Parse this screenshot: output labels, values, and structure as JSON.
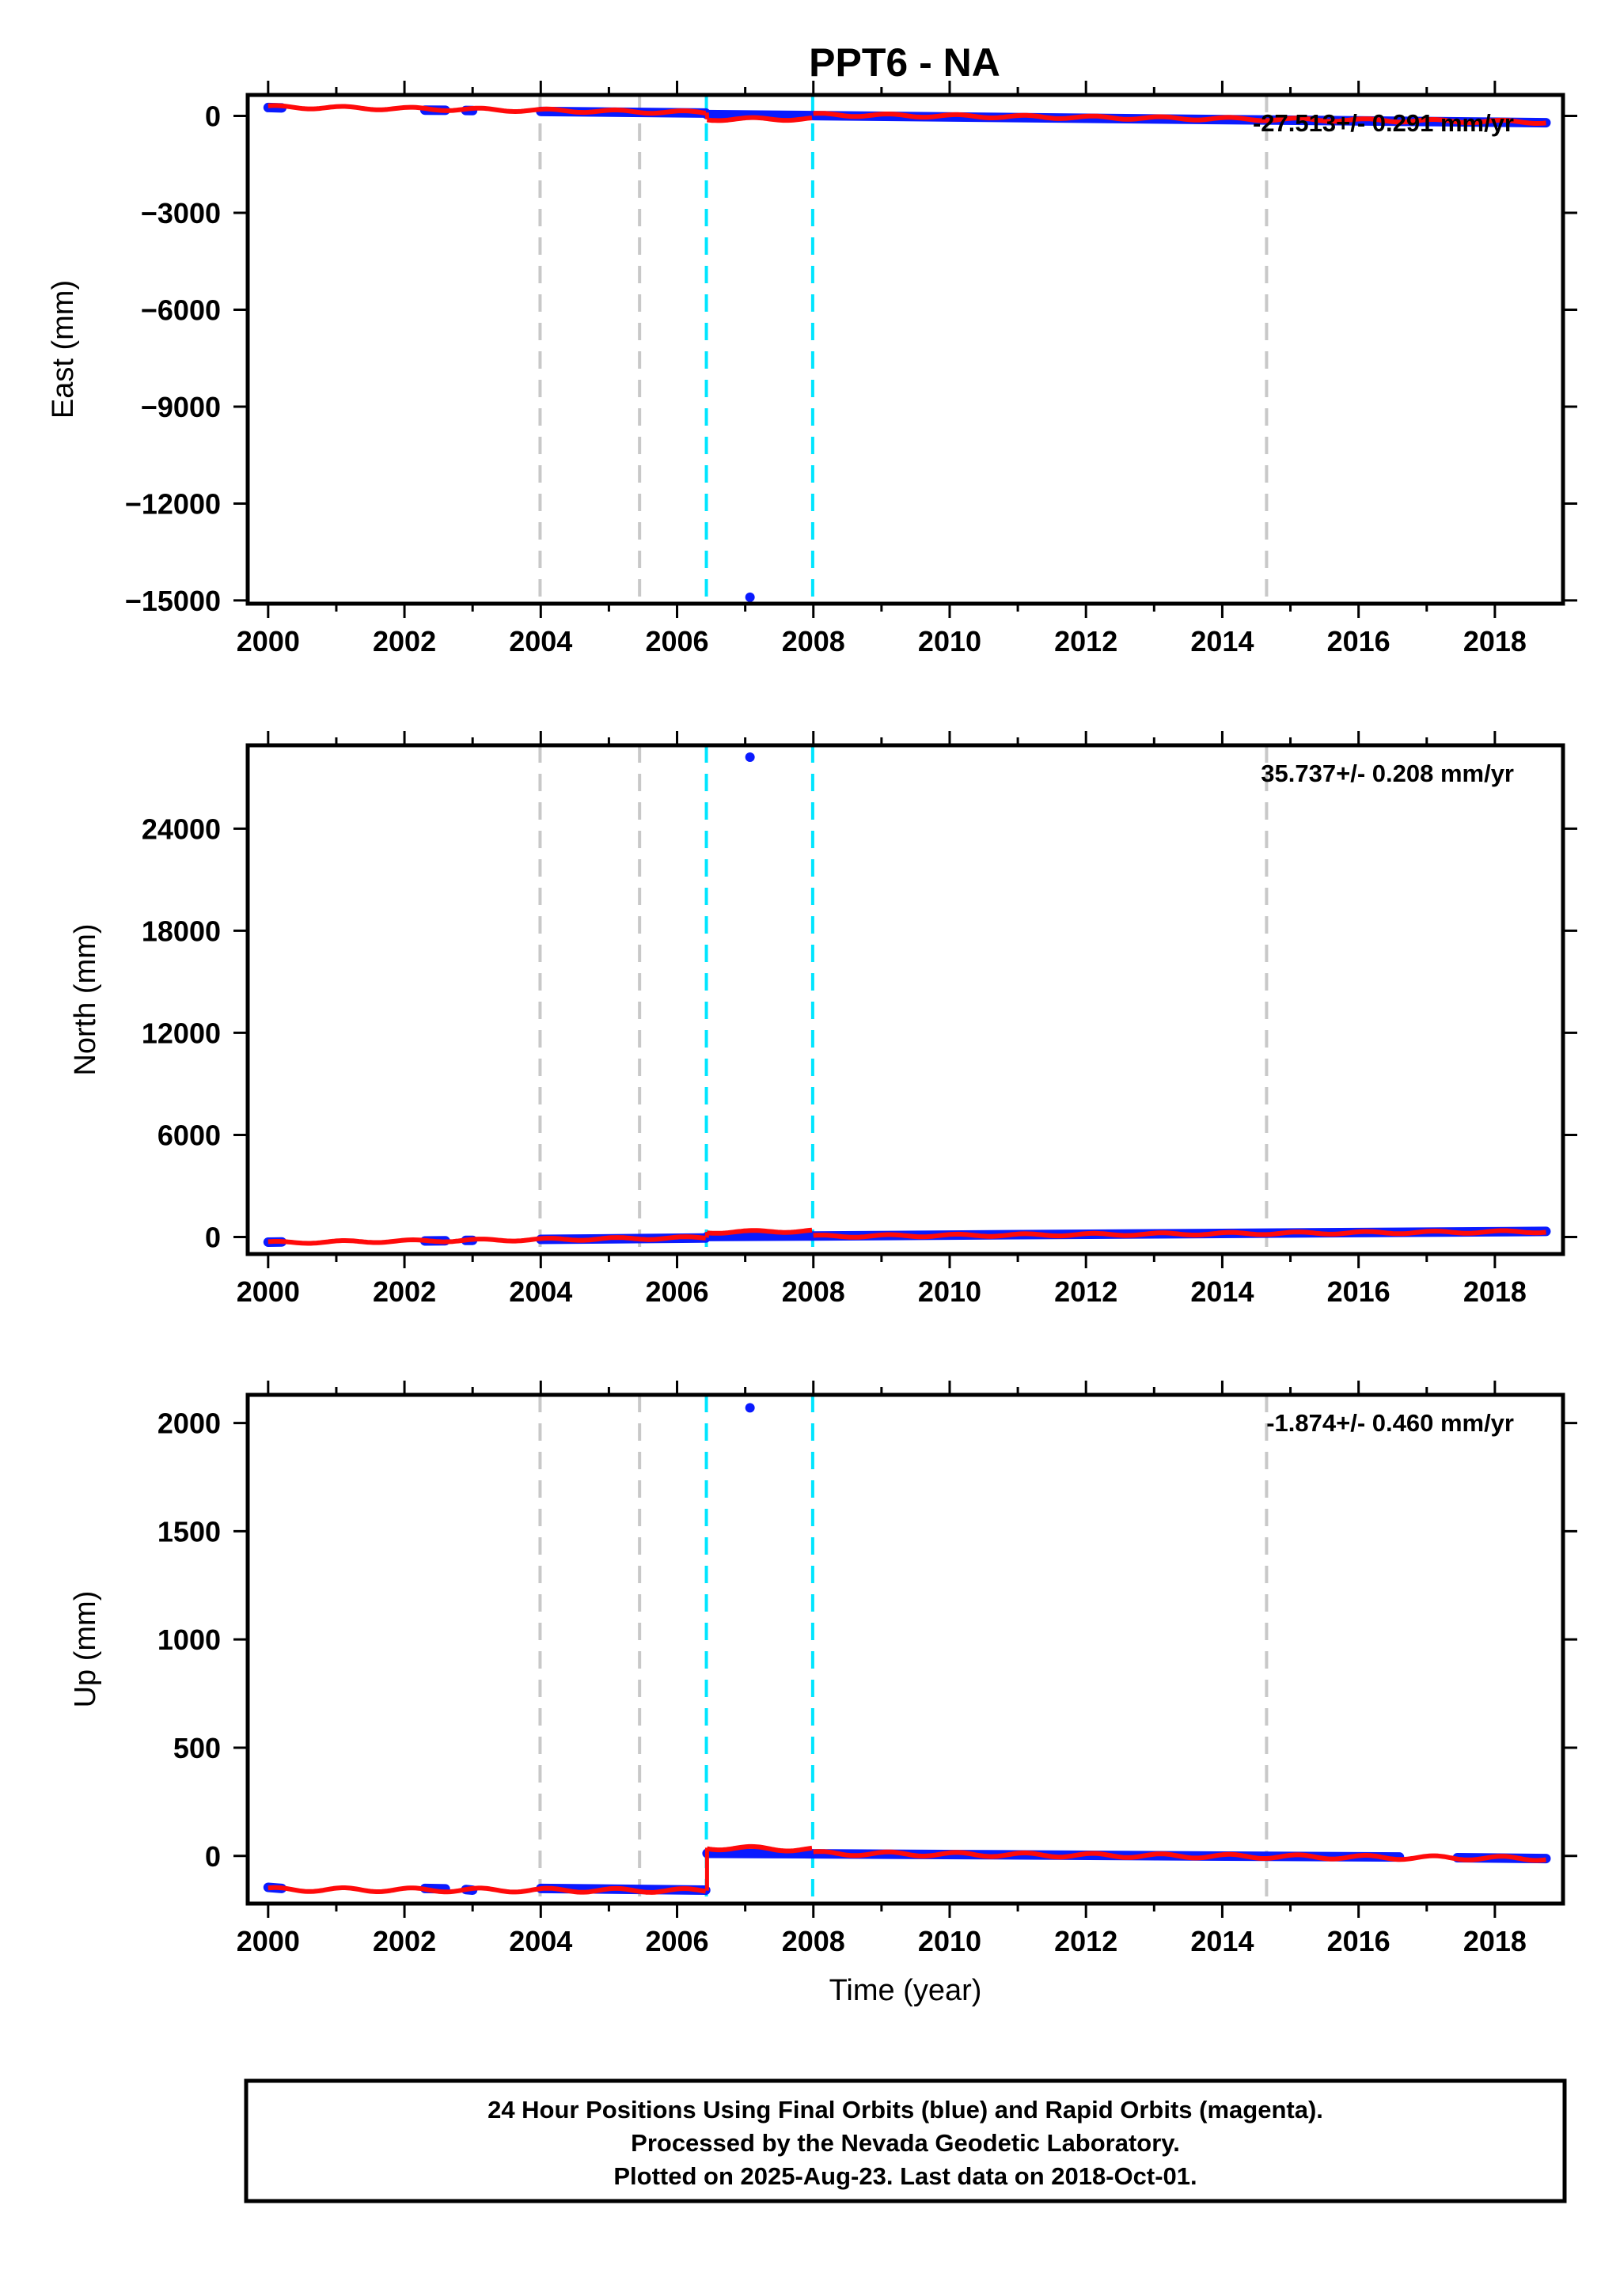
{
  "title": "PPT6 - NA",
  "caption": {
    "line1": "24 Hour Positions Using Final Orbits (blue) and Rapid Orbits (magenta).",
    "line2": "Processed by the Nevada Geodetic Laboratory.",
    "line3": "Plotted on 2025-Aug-23. Last data on 2018-Oct-01."
  },
  "colors": {
    "data_points": "#0a1aff",
    "model": "#ff0a0a",
    "equipment_change": "#c8c8c8",
    "earthquake": "#00e5ff",
    "frame": "#000000"
  },
  "chart_data": [
    {
      "type": "scatter",
      "component": "East",
      "ylabel": "East (mm)",
      "xlabel": "",
      "xlim": [
        1999.7,
        2019.0
      ],
      "ylim": [
        -15100,
        650
      ],
      "xticks": [
        2000,
        2002,
        2004,
        2006,
        2008,
        2010,
        2012,
        2014,
        2016,
        2018
      ],
      "xtick_labels": [
        "2000",
        "2002",
        "2004",
        "2006",
        "2008",
        "2010",
        "2012",
        "2014",
        "2016",
        "2018"
      ],
      "yticks": [
        0,
        -3000,
        -6000,
        -9000,
        -12000,
        -15000
      ],
      "ytick_labels": [
        "0",
        "−3000",
        "−6000",
        "−9000",
        "−12000",
        "−15000"
      ],
      "rate_text": "-27.513+/- 0.291 mm/yr",
      "grey_lines": [
        2003.99,
        2005.45,
        2014.65
      ],
      "cyan_lines": [
        2006.43,
        2007.99
      ],
      "outliers": [
        {
          "x": 2007.07,
          "y": -14900
        }
      ],
      "series": [
        {
          "segments": [
            {
              "x0": 2000.0,
              "y0": 260,
              "x1": 2000.2,
              "y1": 250
            },
            {
              "x0": 2002.3,
              "y0": 180,
              "x1": 2002.6,
              "y1": 175
            },
            {
              "x0": 2002.9,
              "y0": 170,
              "x1": 2003.0,
              "y1": 165
            },
            {
              "x0": 2004.0,
              "y0": 140,
              "x1": 2006.42,
              "y1": 90
            },
            {
              "x0": 2006.44,
              "y0": 40,
              "x1": 2007.98,
              "y1": 10
            },
            {
              "x0": 2008.0,
              "y0": 10,
              "x1": 2018.75,
              "y1": -210
            }
          ]
        }
      ],
      "model": {
        "segments": [
          {
            "x0": 2000.0,
            "x1": 2006.42,
            "y0": 280,
            "y1": 105
          },
          {
            "x0": 2006.44,
            "x1": 2007.98,
            "y0": -100,
            "y1": -90
          },
          {
            "x0": 2008.0,
            "x1": 2018.75,
            "y0": 40,
            "y1": -190
          }
        ],
        "wiggle": 45
      }
    },
    {
      "type": "scatter",
      "component": "North",
      "ylabel": "North (mm)",
      "xlabel": "",
      "xlim": [
        1999.7,
        2019.0
      ],
      "ylim": [
        -1000,
        28900
      ],
      "xticks": [
        2000,
        2002,
        2004,
        2006,
        2008,
        2010,
        2012,
        2014,
        2016,
        2018
      ],
      "xtick_labels": [
        "2000",
        "2002",
        "2004",
        "2006",
        "2008",
        "2010",
        "2012",
        "2014",
        "2016",
        "2018"
      ],
      "yticks": [
        0,
        6000,
        12000,
        18000,
        24000
      ],
      "ytick_labels": [
        "0",
        "6000",
        "12000",
        "18000",
        "24000"
      ],
      "rate_text": "35.737+/- 0.208 mm/yr",
      "grey_lines": [
        2003.99,
        2005.45,
        2014.65
      ],
      "cyan_lines": [
        2006.43,
        2007.99
      ],
      "outliers": [
        {
          "x": 2007.07,
          "y": 28200
        }
      ],
      "series": [
        {
          "segments": [
            {
              "x0": 2000.0,
              "y0": -300,
              "x1": 2000.2,
              "y1": -290
            },
            {
              "x0": 2002.3,
              "y0": -230,
              "x1": 2002.6,
              "y1": -220
            },
            {
              "x0": 2002.9,
              "y0": -200,
              "x1": 2003.0,
              "y1": -195
            },
            {
              "x0": 2004.0,
              "y0": -140,
              "x1": 2006.42,
              "y1": -60
            },
            {
              "x0": 2006.44,
              "y0": 30,
              "x1": 2007.98,
              "y1": 60
            },
            {
              "x0": 2008.0,
              "y0": 60,
              "x1": 2018.75,
              "y1": 330
            }
          ]
        }
      ],
      "model": {
        "segments": [
          {
            "x0": 2000.0,
            "x1": 2006.42,
            "y0": -330,
            "y1": -40
          },
          {
            "x0": 2006.44,
            "x1": 2007.98,
            "y0": 280,
            "y1": 360
          },
          {
            "x0": 2008.0,
            "x1": 2018.75,
            "y0": 40,
            "y1": 320
          }
        ],
        "wiggle": 70
      }
    },
    {
      "type": "scatter",
      "component": "Up",
      "ylabel": "Up (mm)",
      "xlabel": "Time (year)",
      "xlim": [
        1999.7,
        2019.0
      ],
      "ylim": [
        -220,
        2130
      ],
      "xticks": [
        2000,
        2002,
        2004,
        2006,
        2008,
        2010,
        2012,
        2014,
        2016,
        2018
      ],
      "xtick_labels": [
        "2000",
        "2002",
        "2004",
        "2006",
        "2008",
        "2010",
        "2012",
        "2014",
        "2016",
        "2018"
      ],
      "yticks": [
        0,
        500,
        1000,
        1500,
        2000
      ],
      "ytick_labels": [
        "0",
        "500",
        "1000",
        "1500",
        "2000"
      ],
      "rate_text": "-1.874+/- 0.460 mm/yr",
      "grey_lines": [
        2003.99,
        2005.45,
        2014.65
      ],
      "cyan_lines": [
        2006.43,
        2007.99
      ],
      "outliers": [
        {
          "x": 2007.07,
          "y": 2070
        }
      ],
      "series": [
        {
          "segments": [
            {
              "x0": 2000.0,
              "y0": -145,
              "x1": 2000.2,
              "y1": -150
            },
            {
              "x0": 2002.3,
              "y0": -150,
              "x1": 2002.6,
              "y1": -152
            },
            {
              "x0": 2002.9,
              "y0": -155,
              "x1": 2003.0,
              "y1": -158
            },
            {
              "x0": 2004.0,
              "y0": -150,
              "x1": 2006.42,
              "y1": -158
            },
            {
              "x0": 2006.44,
              "y0": 12,
              "x1": 2007.98,
              "y1": 10
            },
            {
              "x0": 2008.0,
              "y0": 10,
              "x1": 2016.6,
              "y1": -5
            },
            {
              "x0": 2017.45,
              "y0": -8,
              "x1": 2018.75,
              "y1": -12
            }
          ]
        }
      ],
      "model": {
        "segments": [
          {
            "x0": 2000.0,
            "x1": 2006.42,
            "y0": -155,
            "y1": -160
          },
          {
            "x0": 2006.44,
            "x1": 2007.98,
            "y0": 38,
            "y1": 30
          },
          {
            "x0": 2008.0,
            "x1": 2018.75,
            "y0": 12,
            "y1": -12
          }
        ],
        "wiggle": 9
      }
    }
  ]
}
